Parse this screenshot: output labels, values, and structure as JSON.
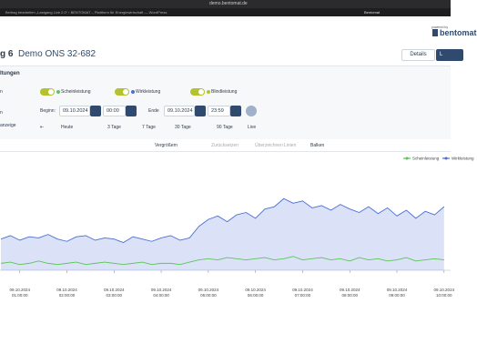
{
  "browser": {
    "url": "demo.bentomat.de",
    "tab": "Beitrag bearbeiten „Lastgang Live 2.0“ ‹ BENTOMAT – Plattform für Energiewirtschaft — WordPress",
    "tab_right": "Bentomat"
  },
  "header": {
    "powered_by": "powered by",
    "logo": "bentomat"
  },
  "title": {
    "prefix": "g 6",
    "name": "Demo ONS 32-682",
    "buttons": [
      "Details",
      "L"
    ]
  },
  "settings": {
    "heading": "ltungen",
    "side_labels": [
      "n",
      "n",
      "anzeige"
    ],
    "toggles": [
      "Scheinleistung",
      "Wirkleistung",
      "Blindleistung"
    ],
    "begin_label": "Beginn:",
    "begin_date": "09.10.2024",
    "begin_time": "00:00",
    "end_label": "Ende",
    "end_date": "09.10.2024",
    "end_time": "23:59",
    "ranges": [
      "Heute",
      "3 Tage",
      "7 Tage",
      "30 Tage",
      "90 Tage",
      "Live"
    ]
  },
  "toolbar": [
    "Vergrößern",
    "Zurücksetzen",
    "Überzeichnen",
    "Linien",
    "Balken"
  ],
  "chart_data": {
    "type": "line",
    "area": true,
    "legend": "top-right",
    "x": [
      0.6,
      0.8,
      1.0,
      1.2,
      1.4,
      1.6,
      1.8,
      2.0,
      2.2,
      2.4,
      2.6,
      2.8,
      3.0,
      3.2,
      3.4,
      3.6,
      3.8,
      4.0,
      4.2,
      4.4,
      4.6,
      4.8,
      5.0,
      5.2,
      5.4,
      5.6,
      5.8,
      6.0,
      6.2,
      6.4,
      6.6,
      6.8,
      7.0,
      7.2,
      7.4,
      7.6,
      7.8,
      8.0,
      8.2,
      8.4,
      8.6,
      8.8,
      9.0,
      9.2,
      9.4,
      9.6,
      9.8,
      10.0
    ],
    "series": [
      {
        "name": "Scheinleistung",
        "color": "#5cc45a",
        "values": [
          6,
          7,
          5,
          6,
          8,
          6,
          5,
          6,
          7,
          5,
          6,
          7,
          6,
          5,
          6,
          7,
          5,
          6,
          6,
          5,
          7,
          9,
          10,
          9,
          11,
          10,
          9,
          10,
          11,
          9,
          10,
          12,
          9,
          10,
          11,
          9,
          10,
          8,
          11,
          9,
          10,
          8,
          9,
          11,
          8,
          9,
          10,
          9
        ]
      },
      {
        "name": "Wirkleistung",
        "color": "#4a6fd6",
        "values": [
          27,
          30,
          26,
          29,
          28,
          31,
          27,
          25,
          29,
          30,
          26,
          28,
          27,
          24,
          29,
          27,
          25,
          28,
          30,
          26,
          28,
          38,
          44,
          47,
          42,
          48,
          50,
          45,
          53,
          55,
          62,
          58,
          60,
          54,
          56,
          52,
          57,
          53,
          50,
          55,
          49,
          54,
          47,
          52,
          45,
          51,
          48,
          55
        ]
      }
    ],
    "xlim": [
      0.6,
      10.1
    ],
    "ylim": [
      0,
      100
    ],
    "xticks": [
      {
        "value": 1,
        "label": "09.10.2024 01:00:00"
      },
      {
        "value": 2,
        "label": "09.10.2024 02:00:00"
      },
      {
        "value": 3,
        "label": "09.10.2024 03:00:00"
      },
      {
        "value": 4,
        "label": "09.10.2024 04:00:00"
      },
      {
        "value": 5,
        "label": "09.10.2024 05:00:00"
      },
      {
        "value": 6,
        "label": "09.10.2024 06:00:00"
      },
      {
        "value": 7,
        "label": "09.10.2024 07:00:00"
      },
      {
        "value": 8,
        "label": "09.10.2024 08:00:00"
      },
      {
        "value": 9,
        "label": "09.10.2024 09:00:00"
      },
      {
        "value": 10,
        "label": "09.10.2024 10:00:00"
      }
    ]
  }
}
